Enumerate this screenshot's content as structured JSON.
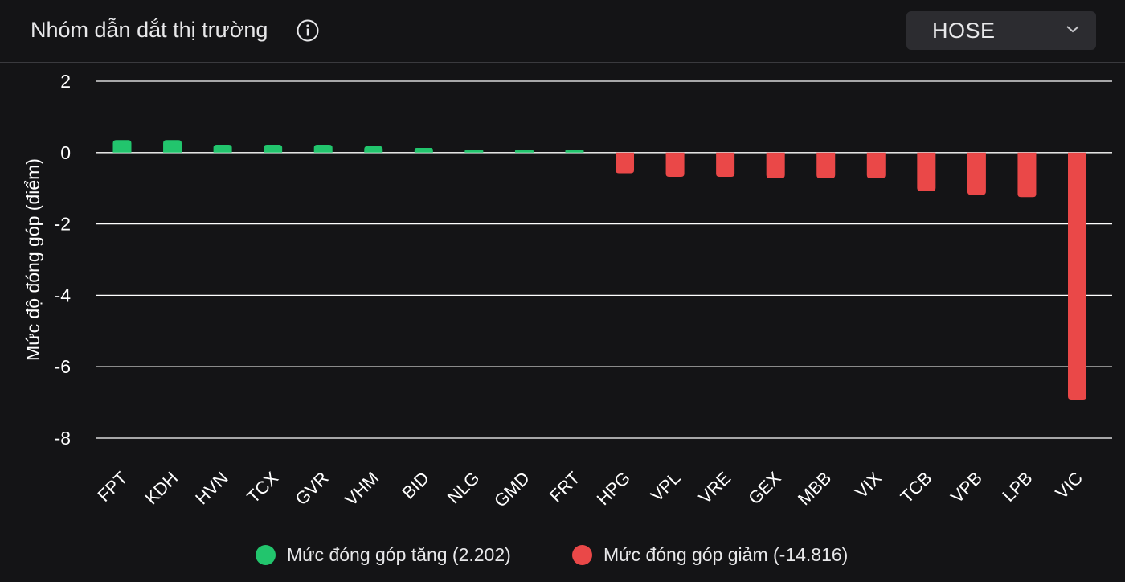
{
  "header": {
    "title": "Nhóm dẫn dắt thị trường",
    "info_icon": "info-circle-icon",
    "exchange_selected": "HOSE",
    "dropdown_icon": "chevron-down-icon"
  },
  "chart_data": {
    "type": "bar",
    "ylabel": "Mức độ đóng góp (điểm)",
    "xlabel": "",
    "ylim": [
      -8,
      2
    ],
    "yticks": [
      2,
      0,
      -2,
      -4,
      -6,
      -8
    ],
    "grid": true,
    "legend_position": "bottom",
    "categories": [
      "FPT",
      "KDH",
      "HVN",
      "TCX",
      "GVR",
      "VHM",
      "BID",
      "NLG",
      "GMD",
      "FRT",
      "HPG",
      "VPL",
      "VRE",
      "GEX",
      "MBB",
      "VIX",
      "TCB",
      "VPB",
      "LPB",
      "VIC"
    ],
    "values": [
      0.35,
      0.35,
      0.22,
      0.22,
      0.22,
      0.18,
      0.13,
      0.08,
      0.08,
      0.08,
      -0.58,
      -0.68,
      -0.68,
      -0.72,
      -0.72,
      -0.72,
      -1.08,
      -1.18,
      -1.25,
      -6.92
    ],
    "series": [
      {
        "name": "Mức đóng góp tăng (2.202)",
        "color": "#22c56d"
      },
      {
        "name": "Mức đóng góp giảm (-14.816)",
        "color": "#ea4848"
      }
    ]
  },
  "colors": {
    "positive": "#22c56d",
    "negative": "#ea4848",
    "background": "#141416",
    "grid": "#ffffff"
  }
}
